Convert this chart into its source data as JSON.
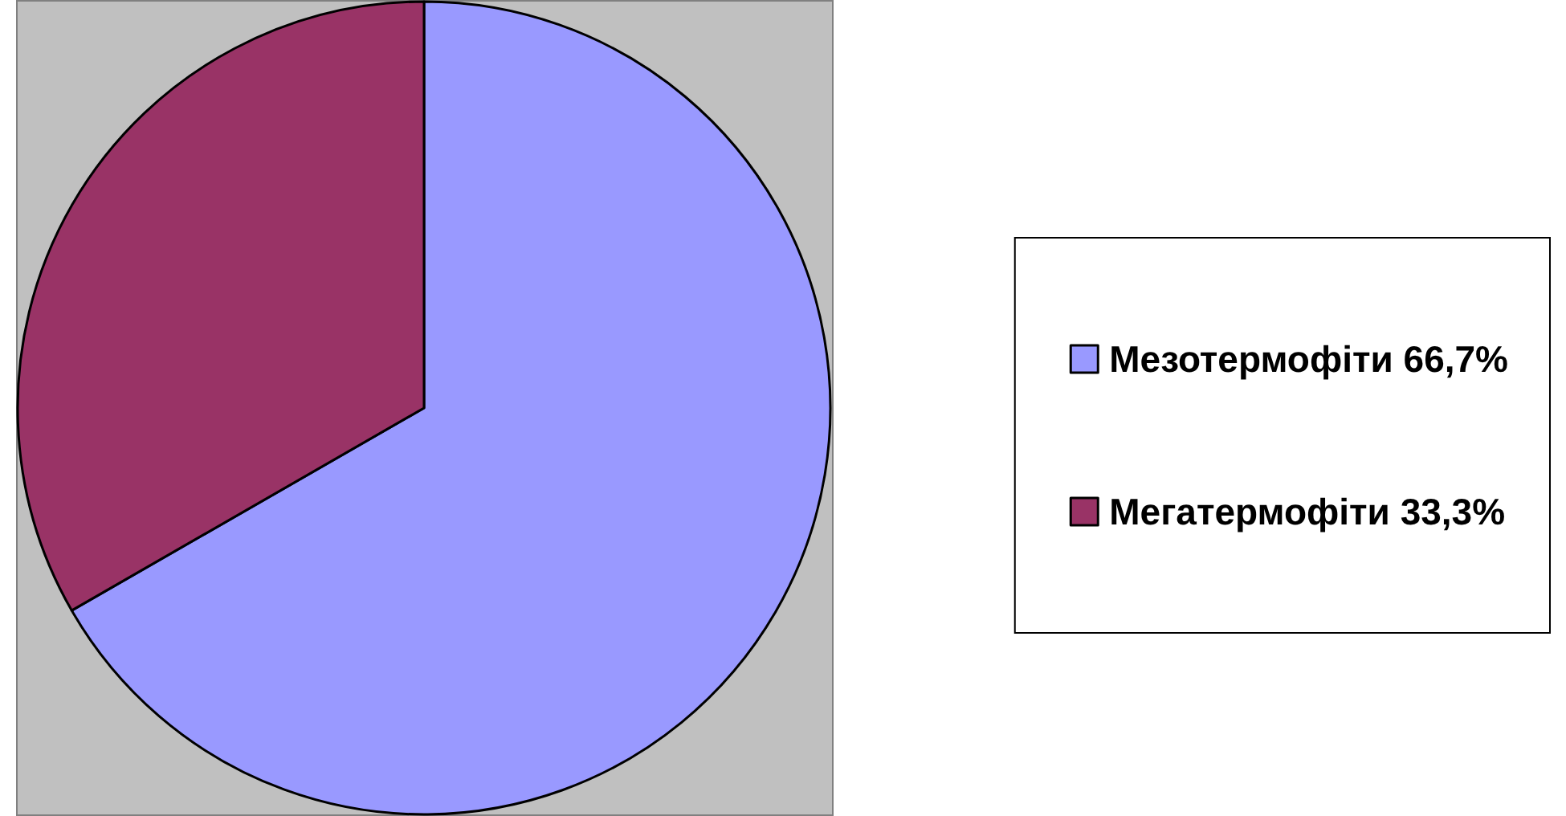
{
  "chart_data": {
    "type": "pie",
    "categories": [
      "Мезотермофіти 66,7%",
      "Мегатермофіти 33,3%"
    ],
    "values": [
      66.7,
      33.3
    ],
    "colors": [
      "#9999ff",
      "#993366"
    ],
    "legend": "right"
  }
}
